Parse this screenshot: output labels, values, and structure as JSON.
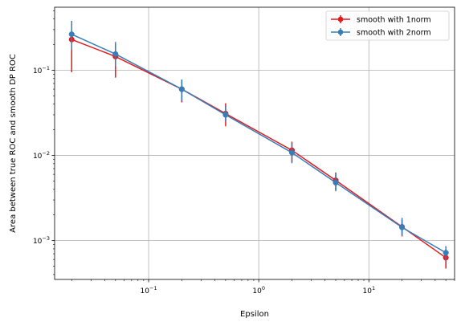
{
  "chart_data": {
    "type": "line",
    "xlabel": "Epsilon",
    "ylabel": "Area between true ROC and smooth DP ROC",
    "xscale": "log",
    "yscale": "log",
    "xlim": [
      0.014,
      60
    ],
    "ylim": [
      0.00035,
      0.55
    ],
    "x_major_ticks": [
      {
        "value": 0.1,
        "base": "10",
        "exp": "−1"
      },
      {
        "value": 1,
        "base": "10",
        "exp": "0"
      },
      {
        "value": 10,
        "base": "10",
        "exp": "1"
      }
    ],
    "y_major_ticks": [
      {
        "value": 0.001,
        "base": "10",
        "exp": "−3"
      },
      {
        "value": 0.01,
        "base": "10",
        "exp": "−2"
      },
      {
        "value": 0.1,
        "base": "10",
        "exp": "−1"
      }
    ],
    "grid": true,
    "legend_position": "top-right",
    "x": [
      0.02,
      0.05,
      0.2,
      0.5,
      2,
      5,
      20,
      50
    ],
    "series": [
      {
        "name": "smooth with 1norm",
        "color": "#e41a1c",
        "values": [
          0.23,
          0.145,
          0.06,
          0.031,
          0.0115,
          0.0051,
          0.00145,
          0.00063
        ],
        "err_low": [
          0.095,
          0.082,
          0.042,
          0.022,
          0.0083,
          0.0039,
          0.00112,
          0.00047
        ],
        "err_high": [
          0.31,
          0.2,
          0.076,
          0.041,
          0.0145,
          0.0063,
          0.00175,
          0.00075
        ]
      },
      {
        "name": "smooth with 2norm",
        "color": "#377eb8",
        "values": [
          0.265,
          0.155,
          0.06,
          0.03,
          0.0108,
          0.0048,
          0.00143,
          0.00072
        ],
        "err_low": [
          0.175,
          0.112,
          0.044,
          0.025,
          0.0081,
          0.0038,
          0.00115,
          0.00058
        ],
        "err_high": [
          0.38,
          0.215,
          0.078,
          0.038,
          0.0142,
          0.0063,
          0.00185,
          0.00086
        ]
      }
    ]
  }
}
